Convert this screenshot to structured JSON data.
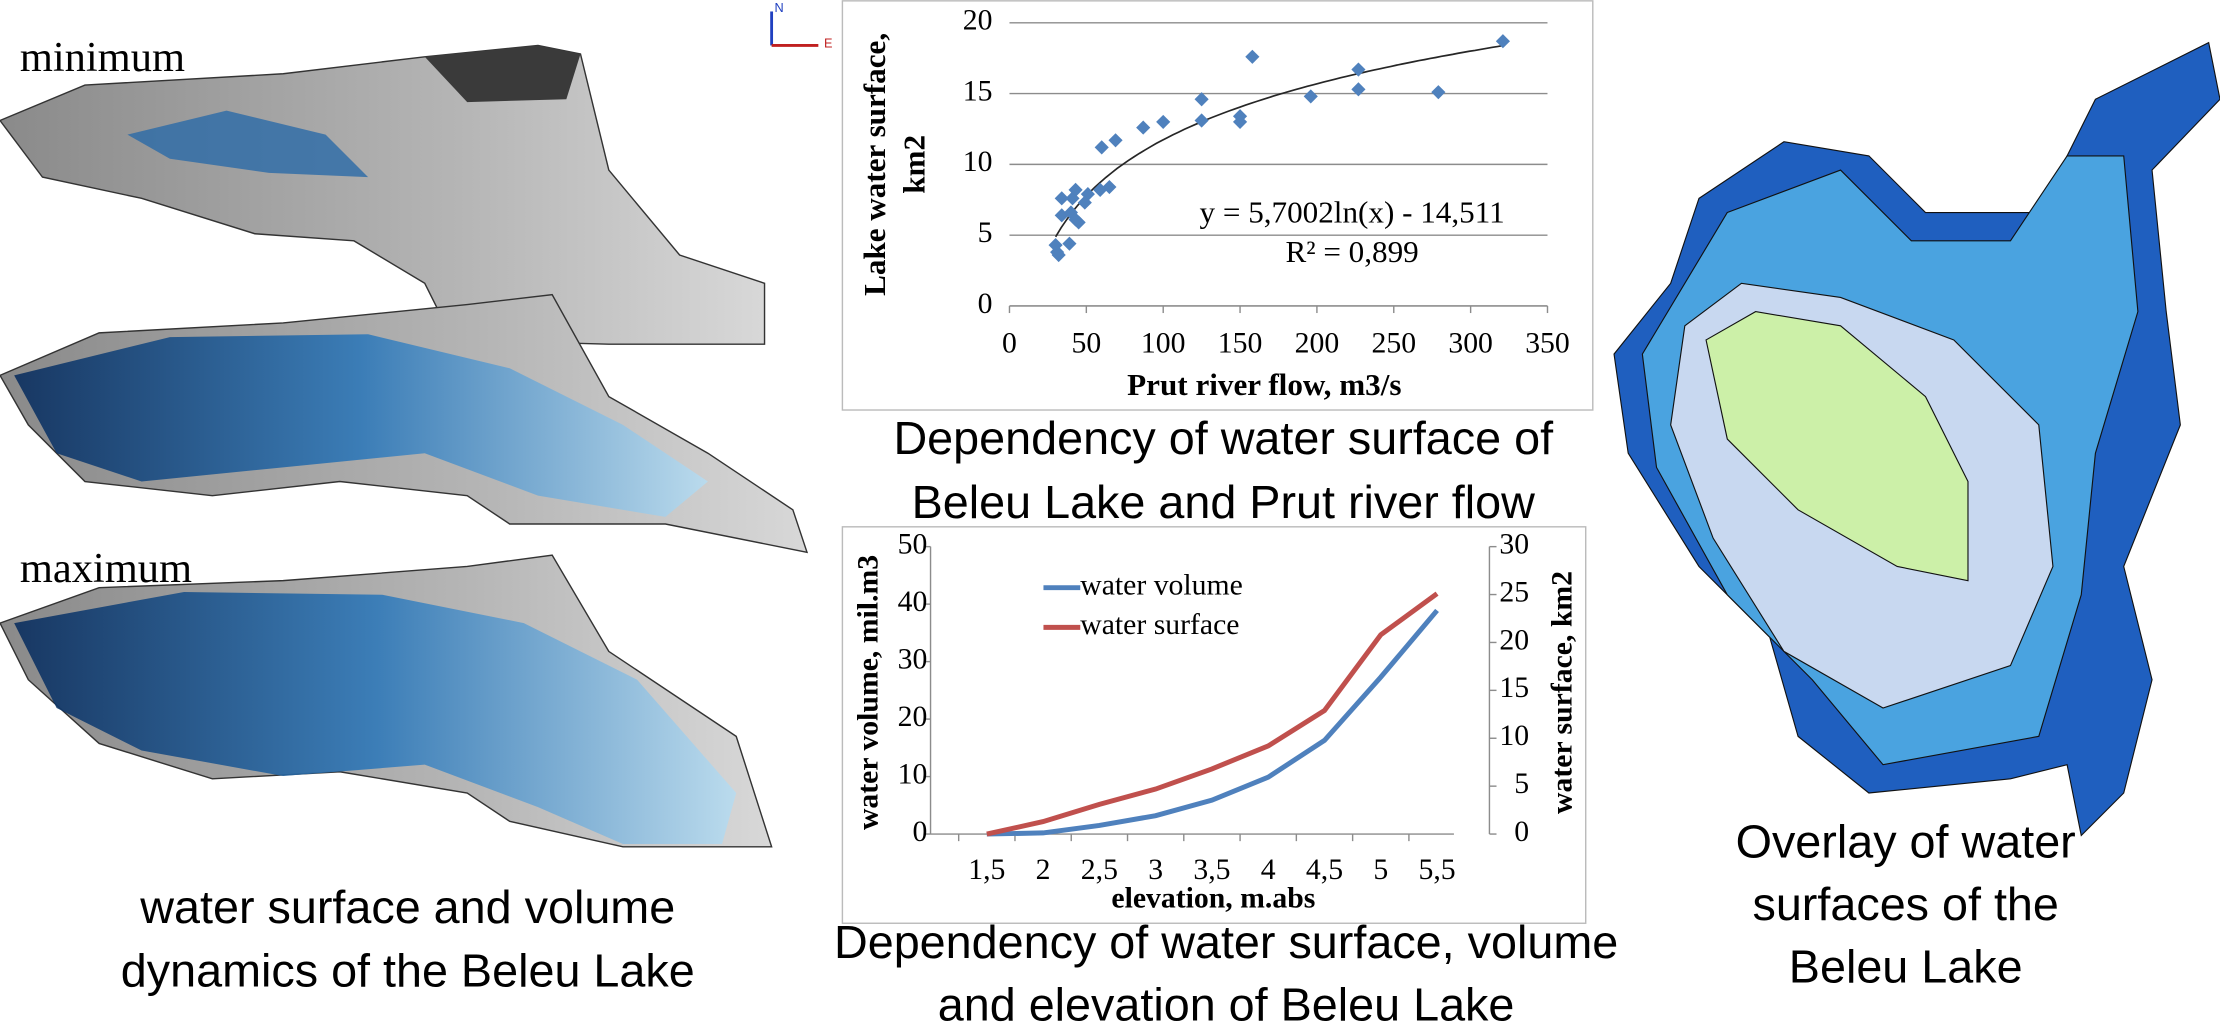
{
  "chart_data": [
    {
      "type": "scatter",
      "x_label": "Prut river flow, m3/s",
      "y_label_lines": [
        "Lake water surface,",
        "km2"
      ],
      "x": [
        321,
        158,
        227,
        227,
        279,
        196,
        125,
        125,
        150,
        150,
        87,
        100,
        60,
        69,
        65,
        59,
        51,
        41,
        34,
        43,
        34,
        40,
        45,
        43,
        30,
        39,
        32,
        31,
        49
      ],
      "values": [
        18.7,
        17.6,
        16.7,
        15.3,
        15.1,
        14.8,
        14.6,
        13.1,
        13.4,
        13.0,
        12.6,
        13.0,
        11.2,
        11.7,
        8.4,
        8.2,
        7.9,
        7.6,
        7.6,
        8.2,
        6.4,
        6.6,
        5.9,
        6.1,
        4.3,
        4.4,
        3.6,
        3.8,
        7.3
      ],
      "color": "#4f81bd",
      "xlim": [
        0,
        350
      ],
      "xticks": [
        0,
        50,
        100,
        150,
        200,
        250,
        300,
        350
      ],
      "ylim": [
        0,
        20
      ],
      "yticks": [
        0,
        5,
        10,
        15,
        20
      ],
      "grid": true,
      "trendline": {
        "label": "y = 5,7002ln(x) - 14,511",
        "r2_label": "R² = 0,899",
        "a": 5.7002,
        "b": -14.511,
        "color": "#262626"
      }
    },
    {
      "type": "line",
      "x_label": "elevation, m.abs",
      "y_label": "water volume, mil.m3",
      "y2_label": "water surface, km2",
      "categories": [
        "1,5",
        "2",
        "2,5",
        "3",
        "3,5",
        "4",
        "4,5",
        "5",
        "5,5"
      ],
      "series": [
        {
          "name": "water volume",
          "color": "#4f81bd",
          "values": [
            0,
            0.2,
            1.5,
            3.2,
            5.9,
            9.9,
            16.3,
            27.3,
            38.9
          ]
        },
        {
          "name": "water surface",
          "color": "#c0504d",
          "axis": "y2",
          "values": [
            0,
            1.3,
            3.1,
            4.7,
            6.8,
            9.2,
            12.9,
            20.8,
            25.1
          ]
        }
      ],
      "ylim": [
        0,
        50
      ],
      "yticks": [
        0,
        10,
        20,
        30,
        40,
        50
      ],
      "y2lim": [
        0,
        30
      ],
      "y2ticks": [
        0,
        5,
        10,
        15,
        20,
        25,
        30
      ],
      "grid": false,
      "legend": "top-left"
    }
  ],
  "panel_labels": {
    "minimum": "minimum",
    "maximum": "maximum",
    "compass_n": "N",
    "compass_e": "E"
  },
  "captions": {
    "scatter": [
      "Dependency of water surface of",
      "Beleu Lake and Prut river flow"
    ],
    "line": [
      "Dependency of water surface, volume",
      "and elevation of  Beleu Lake"
    ],
    "left": [
      "water surface and volume",
      "dynamics of the Beleu Lake"
    ],
    "right": [
      "Overlay of water",
      "surfaces of the",
      "Beleu Lake"
    ]
  }
}
